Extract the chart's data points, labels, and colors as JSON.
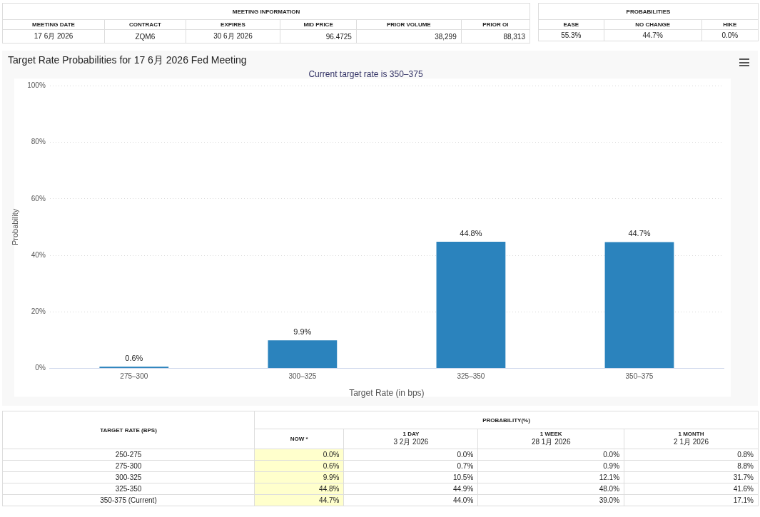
{
  "chart_data": [
    {
      "type": "other",
      "title": "MEETING INFORMATION",
      "categories": [
        "MEETING DATE",
        "CONTRACT",
        "EXPIRES",
        "MID PRICE",
        "PRIOR VOLUME",
        "PRIOR OI"
      ],
      "annotations": [
        "17 6月 2026",
        "ZQM6",
        "30 6月 2026",
        "96.4725",
        "38,299",
        "88,313"
      ]
    },
    {
      "type": "other",
      "title": "PROBABILITIES",
      "categories": [
        "EASE",
        "NO CHANGE",
        "HIKE"
      ],
      "annotations": [
        "55.3%",
        "44.7%",
        "0.0%"
      ]
    },
    {
      "type": "bar",
      "title": "Target Rate Probabilities for 17 6月 2026 Fed Meeting",
      "subtitle": "Current target rate is 350–375",
      "xlabel": "Target Rate (in bps)",
      "ylabel": "Probability",
      "categories": [
        "275–300",
        "300–325",
        "325–350",
        "350–375"
      ],
      "values": [
        0.6,
        9.9,
        44.8,
        44.7
      ],
      "value_labels": [
        "0.6%",
        "9.9%",
        "44.8%",
        "44.7%"
      ],
      "color": "#2b83bd",
      "ylim": [
        0,
        100
      ],
      "yticks": [
        {
          "value": 0,
          "label": "0%"
        },
        {
          "value": 20,
          "label": "20%"
        },
        {
          "value": 40,
          "label": "40%"
        },
        {
          "value": 60,
          "label": "60%"
        },
        {
          "value": 80,
          "label": "80%"
        },
        {
          "value": 100,
          "label": "100%"
        }
      ],
      "grid": "y",
      "legend": false
    },
    {
      "type": "heatmap",
      "title": "PROBABILITY(%)",
      "ylabel": "TARGET RATE (BPS)",
      "categories": [
        "NOW *",
        "1 DAY\n3 2月 2026",
        "1 WEEK\n28 1月 2026",
        "1 MONTH\n2 1月 2026"
      ],
      "y_categories": [
        "250-275",
        "275-300",
        "300-325",
        "325-350",
        "350-375 (Current)"
      ],
      "colors": [
        "#ffffcc",
        "#ffffff",
        "#ffffff",
        "#ffffff"
      ],
      "cells": [
        [
          0.0,
          0.0,
          0.0,
          0.8
        ],
        [
          0.6,
          0.7,
          0.9,
          8.8
        ],
        [
          9.9,
          10.5,
          12.1,
          31.7
        ],
        [
          44.8,
          44.9,
          48.0,
          41.6
        ],
        [
          44.7,
          44.0,
          39.0,
          17.1
        ]
      ],
      "cell_labels": [
        [
          "0.0%",
          "0.0%",
          "0.0%",
          "0.8%"
        ],
        [
          "0.6%",
          "0.7%",
          "0.9%",
          "8.8%"
        ],
        [
          "9.9%",
          "10.5%",
          "12.1%",
          "31.7%"
        ],
        [
          "44.8%",
          "44.9%",
          "48.0%",
          "41.6%"
        ],
        [
          "44.7%",
          "44.0%",
          "39.0%",
          "17.1%"
        ]
      ]
    }
  ]
}
